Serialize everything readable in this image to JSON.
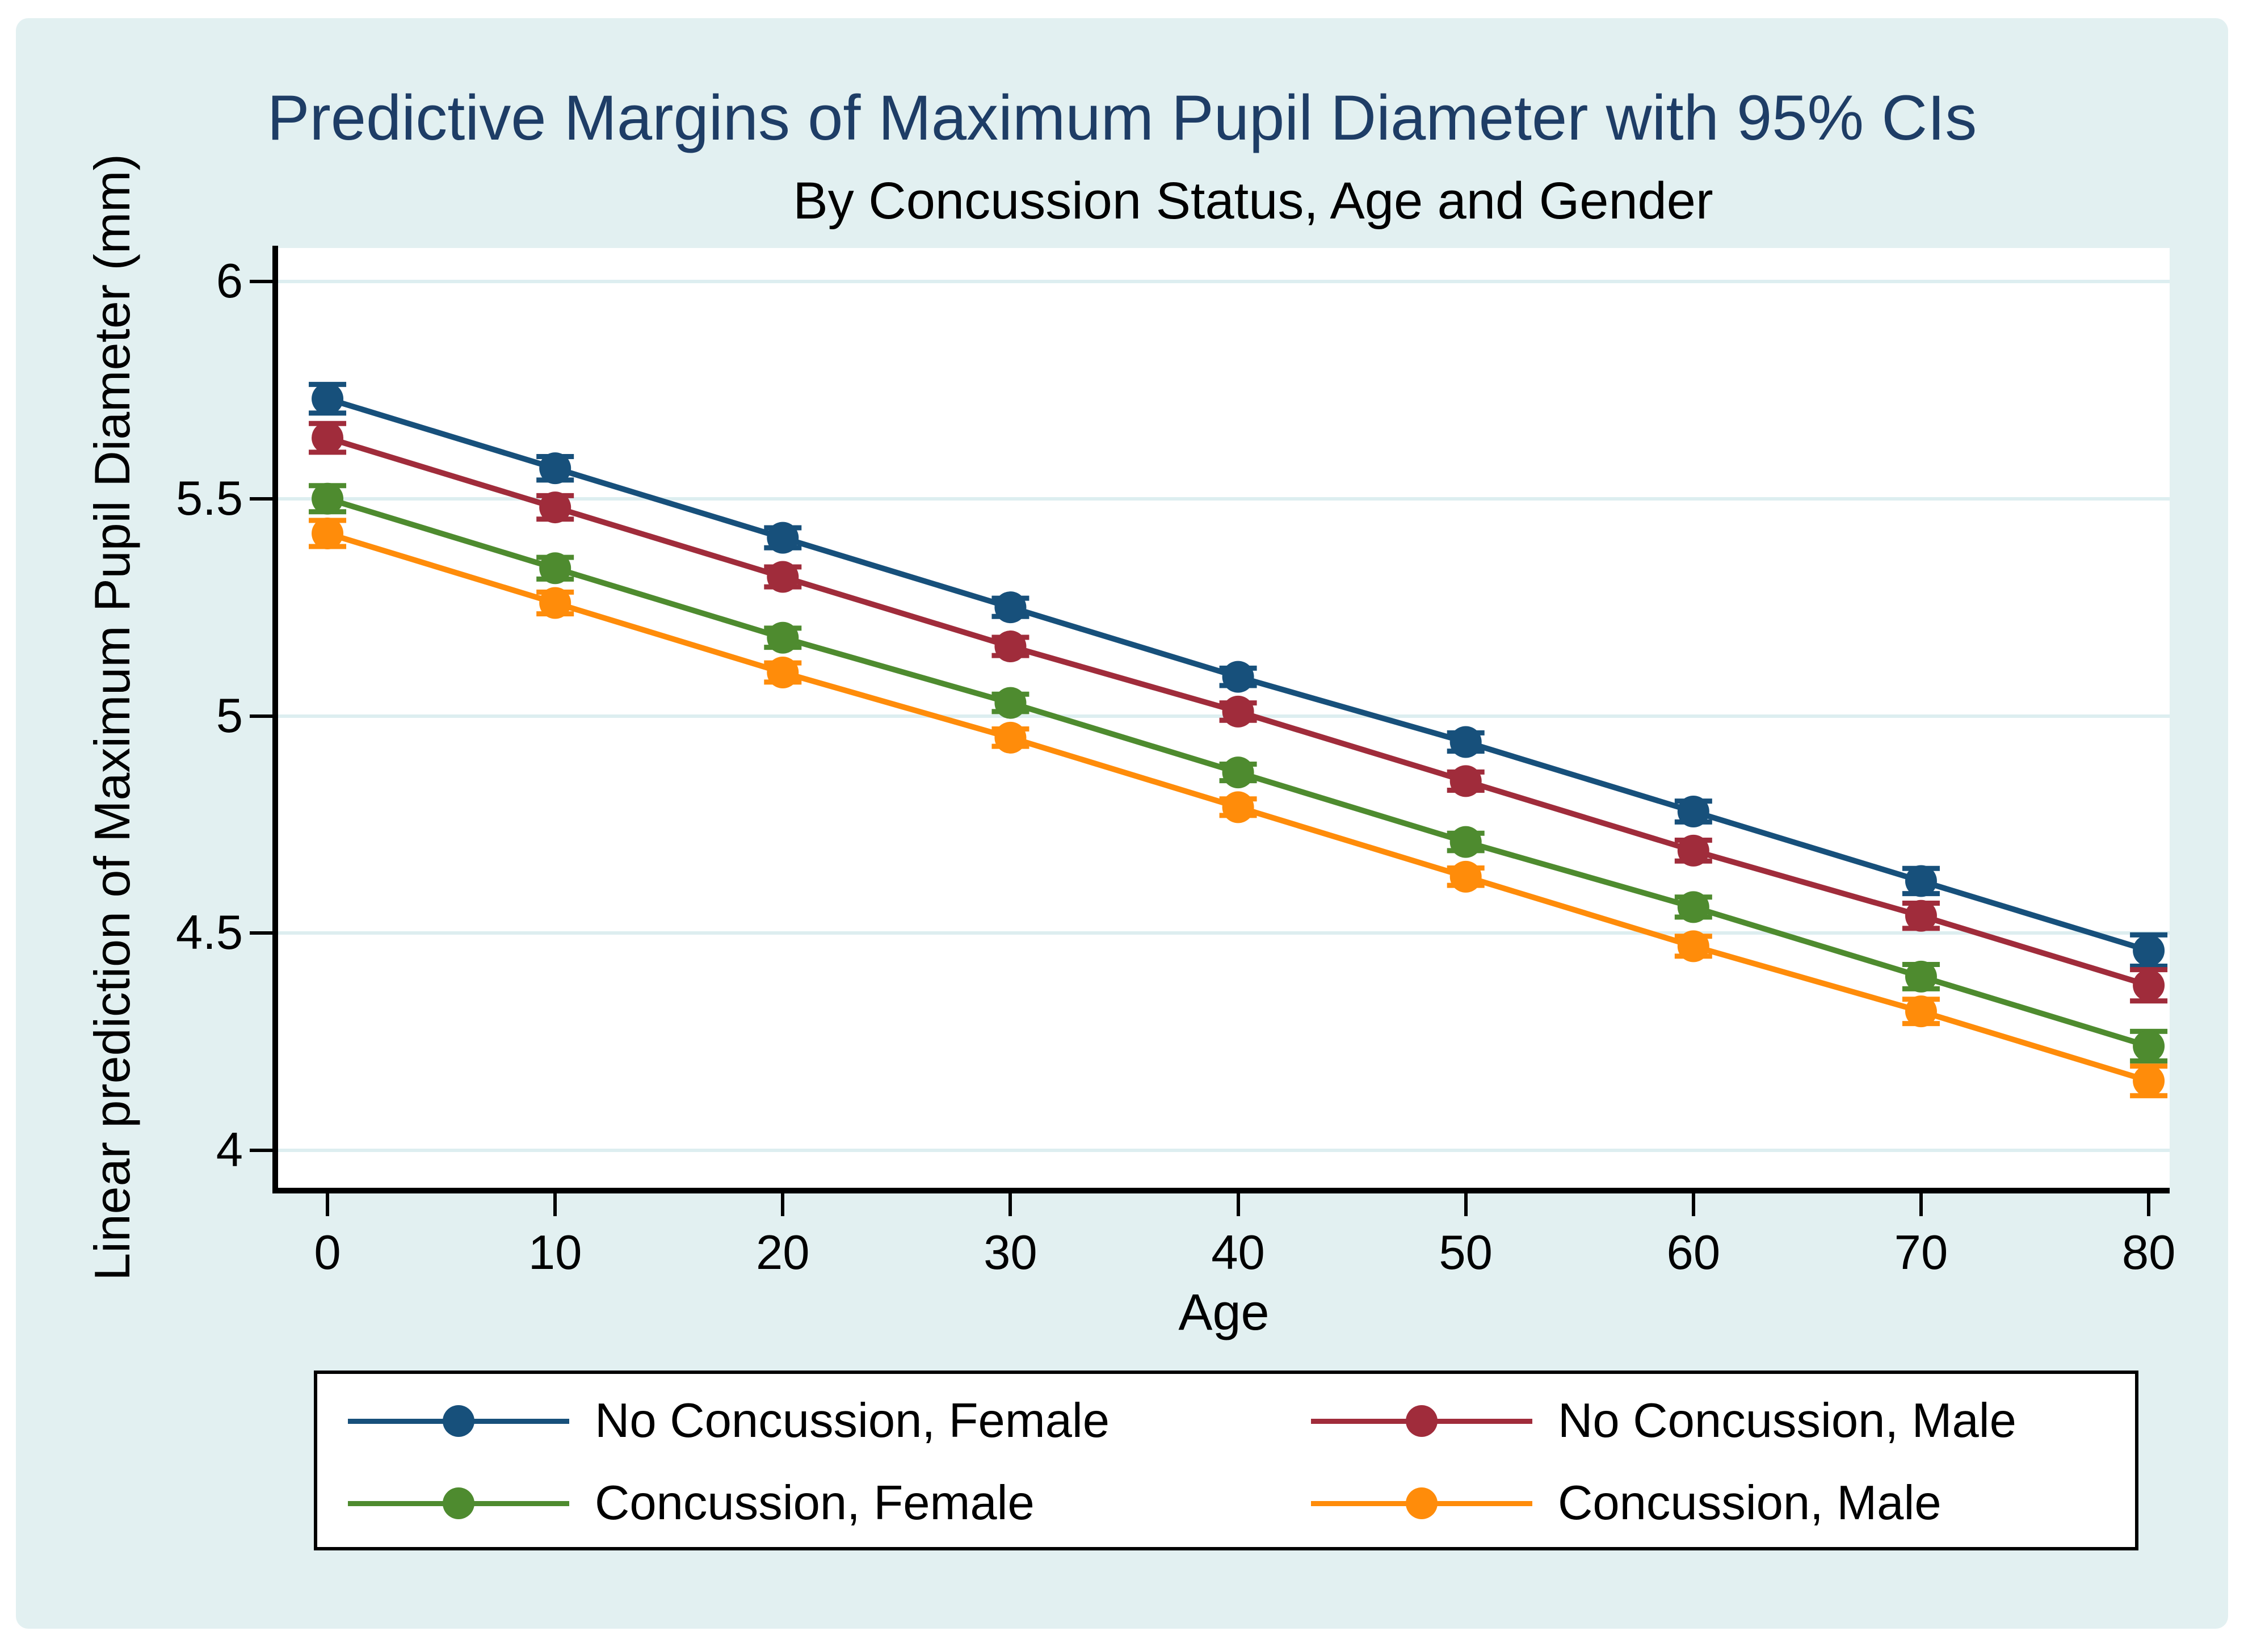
{
  "title": "Predictive Margins of Maximum Pupil Diameter with 95% CIs",
  "subtitle": "By Concussion Status, Age and Gender",
  "chart_data": {
    "type": "line",
    "title": "Predictive Margins of Maximum Pupil Diameter with 95% CIs",
    "subtitle": "By Concussion Status, Age and Gender",
    "xlabel": "Age",
    "ylabel": "Linear prediction of Maximum Pupil Diameter (mm)",
    "x": [
      0,
      10,
      20,
      30,
      40,
      50,
      60,
      70,
      80
    ],
    "xtick_labels": [
      "0",
      "10",
      "20",
      "30",
      "40",
      "50",
      "60",
      "70",
      "80"
    ],
    "yticks": [
      4,
      4.5,
      5,
      5.5,
      6
    ],
    "ytick_labels": [
      "4",
      "4.5",
      "5",
      "5.5",
      "6"
    ],
    "xlim": [
      -2.17,
      80.92
    ],
    "ylim": [
      3.914,
      6.077
    ],
    "grid": "horizontal-only",
    "legend_position": "bottom",
    "series": [
      {
        "name": "No Concussion, Female",
        "color": "#17507b",
        "values": [
          5.73,
          5.57,
          5.41,
          5.25,
          5.09,
          4.94,
          4.78,
          4.62,
          4.46
        ],
        "ci_half": [
          0.033,
          0.027,
          0.023,
          0.021,
          0.02,
          0.021,
          0.024,
          0.029,
          0.036
        ]
      },
      {
        "name": "No Concussion, Male",
        "color": "#a02c3b",
        "values": [
          5.64,
          5.48,
          5.32,
          5.16,
          5.01,
          4.85,
          4.69,
          4.54,
          4.38
        ],
        "ci_half": [
          0.033,
          0.027,
          0.023,
          0.021,
          0.02,
          0.021,
          0.024,
          0.029,
          0.036
        ]
      },
      {
        "name": "Concussion, Female",
        "color": "#4e8b2f",
        "values": [
          5.5,
          5.34,
          5.18,
          5.03,
          4.87,
          4.71,
          4.56,
          4.4,
          4.24
        ],
        "ci_half": [
          0.03,
          0.025,
          0.022,
          0.02,
          0.019,
          0.02,
          0.023,
          0.028,
          0.034
        ]
      },
      {
        "name": "Concussion, Male",
        "color": "#ff8c0a",
        "values": [
          5.42,
          5.26,
          5.1,
          4.95,
          4.79,
          4.63,
          4.47,
          4.32,
          4.16
        ],
        "ci_half": [
          0.03,
          0.025,
          0.022,
          0.02,
          0.019,
          0.02,
          0.023,
          0.028,
          0.034
        ]
      }
    ]
  },
  "colors": {
    "figure_background": "#e2f0f1",
    "plot_background": "#ffffff",
    "gridline": "#ddeef0",
    "axis": "#000000",
    "title_text": "#1e3d66"
  }
}
